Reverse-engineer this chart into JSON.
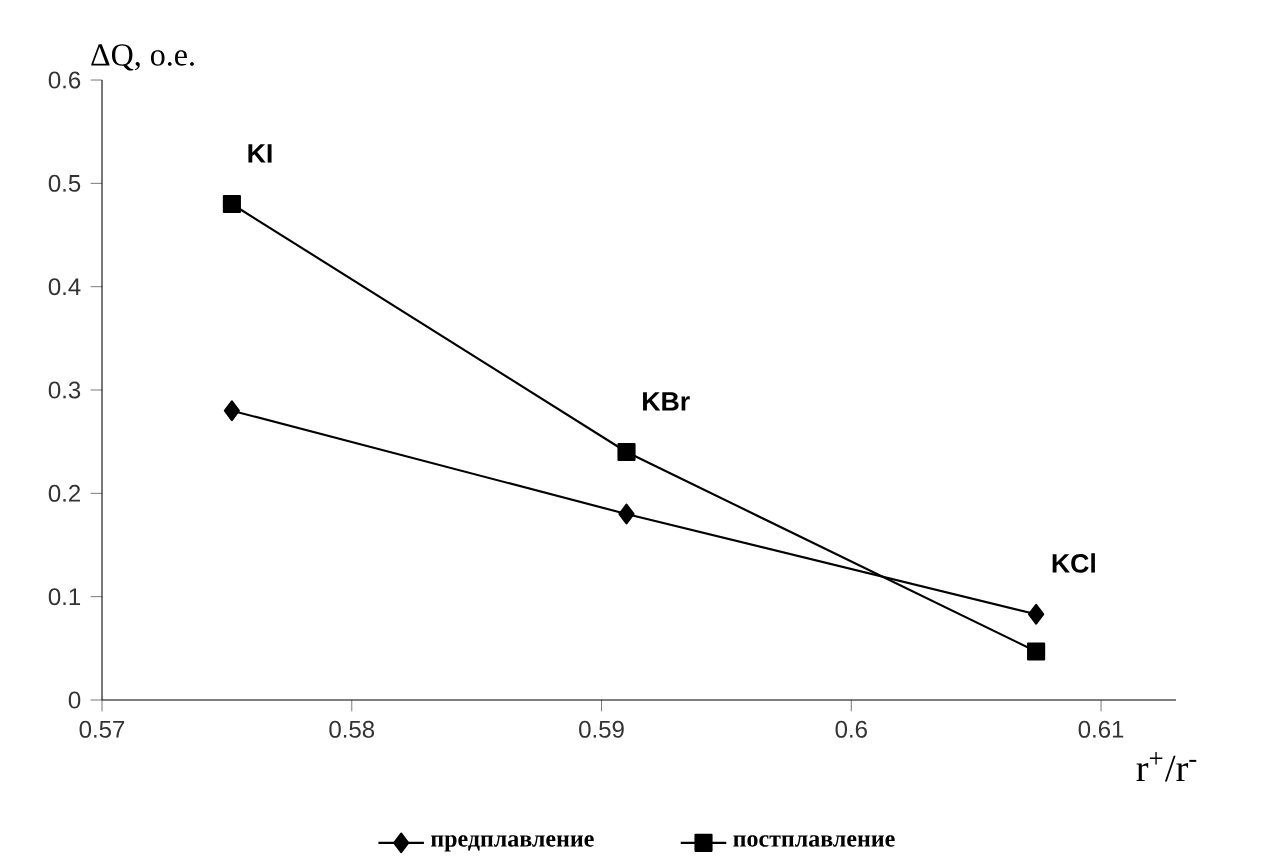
{
  "chart_data": {
    "type": "line",
    "xlabel": "r$^{+}$/r$^{-}$",
    "ylabel": "ΔQ, o.e.",
    "xlim": [
      0.57,
      0.613
    ],
    "xticks": [
      0.57,
      0.58,
      0.59,
      0.6,
      0.61
    ],
    "ylim": [
      0,
      0.6
    ],
    "yticks": [
      0,
      0.1,
      0.2,
      0.3,
      0.4,
      0.5,
      0.6
    ],
    "series": [
      {
        "name": "предплавление",
        "color": "#000000",
        "marker": "diamond",
        "x": [
          0.5752,
          0.591,
          0.6074
        ],
        "values": [
          0.28,
          0.18,
          0.083
        ]
      },
      {
        "name": "постплавление",
        "color": "#000000",
        "marker": "square",
        "x": [
          0.5752,
          0.591,
          0.6074
        ],
        "values": [
          0.48,
          0.24,
          0.047
        ]
      }
    ],
    "annotations": [
      {
        "text": "KI",
        "x": 0.5752,
        "y": 0.48
      },
      {
        "text": "KBr",
        "x": 0.591,
        "y": 0.24
      },
      {
        "text": "KCl",
        "x": 0.6074,
        "y": 0.083
      }
    ],
    "legend": "bottom",
    "grid": false,
    "line_style": "solid"
  }
}
